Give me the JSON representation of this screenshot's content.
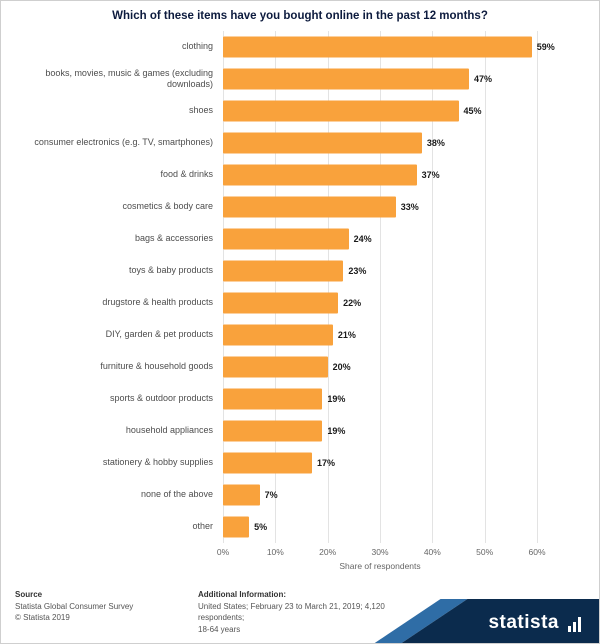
{
  "title": "Which of these items have you bought online in the past 12 months?",
  "chart_data": {
    "type": "bar",
    "orientation": "horizontal",
    "title": "Which of these items have you bought online in the past 12 months?",
    "categories": [
      "clothing",
      "books, movies, music & games (excluding downloads)",
      "shoes",
      "consumer electronics (e.g. TV, smartphones)",
      "food & drinks",
      "cosmetics & body care",
      "bags & accessories",
      "toys & baby products",
      "drugstore & health products",
      "DIY, garden & pet products",
      "furniture & household goods",
      "sports & outdoor products",
      "household appliances",
      "stationery & hobby supplies",
      "none of the above",
      "other"
    ],
    "values": [
      59,
      47,
      45,
      38,
      37,
      33,
      24,
      23,
      22,
      21,
      20,
      19,
      19,
      17,
      7,
      5
    ],
    "value_suffix": "%",
    "xlabel": "Share of respondents",
    "xlim": [
      0,
      60
    ],
    "tick_values": [
      0,
      10,
      20,
      30,
      40,
      50,
      60
    ],
    "tick_labels": [
      "0%",
      "10%",
      "20%",
      "30%",
      "40%",
      "50%",
      "60%"
    ],
    "bar_color": "#F9A23C",
    "grid": true,
    "legend": "none"
  },
  "footer": {
    "source_heading": "Source",
    "source_line1": "Statista Global Consumer Survey",
    "source_line2": "© Statista 2019",
    "additional_heading": "Additional Information:",
    "additional_line1": "United States; February 23 to March 21, 2019; 4,120 respondents;",
    "additional_line2": "18-64 years",
    "brand": "statista"
  }
}
